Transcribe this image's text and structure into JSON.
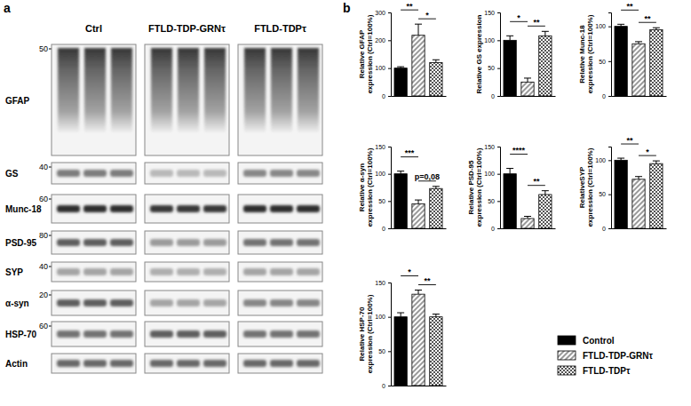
{
  "panel_a": {
    "label": "a",
    "groups": [
      "Ctrl",
      "FTLD-TDP-GRNτ",
      "FTLD-TDPτ"
    ],
    "rows": [
      {
        "name": "GFAP",
        "mw": 50
      },
      {
        "name": "GS",
        "mw": 40
      },
      {
        "name": "Munc-18",
        "mw": 60
      },
      {
        "name": "PSD-95",
        "mw": 80
      },
      {
        "name": "SYP",
        "mw": 40
      },
      {
        "name": "α-syn",
        "mw": 20
      },
      {
        "name": "HSP-70",
        "mw": 60
      },
      {
        "name": "Actin",
        "mw": null
      }
    ]
  },
  "panel_b_label": "b",
  "legend_items": [
    {
      "name": "Control",
      "color": "#000000"
    },
    {
      "name": "FTLD-TDP-GRNτ",
      "color": "#9a9a9a"
    },
    {
      "name": "FTLD-TDPτ",
      "color": "#555555"
    }
  ],
  "chart_data": [
    {
      "type": "bar",
      "y_label": [
        "Relative GFAP",
        "expression (Ctrl=100%)"
      ],
      "categories": [
        null,
        null,
        null
      ],
      "values": [
        100,
        218,
        120
      ],
      "errors": [
        5,
        40,
        10
      ],
      "colors": [
        "#000000",
        "#9a9a9a",
        "#555555"
      ],
      "ylim": [
        0,
        300
      ],
      "yticks": [
        0,
        100,
        200,
        300
      ],
      "comparisons": [
        {
          "from": 0,
          "to": 1,
          "label": "**"
        },
        {
          "from": 1,
          "to": 2,
          "label": "*"
        }
      ]
    },
    {
      "type": "bar",
      "y_label": [
        "Relative GS expression"
      ],
      "categories": [
        null,
        null,
        null
      ],
      "values": [
        100,
        25,
        108
      ],
      "errors": [
        8,
        7,
        8
      ],
      "colors": [
        "#000000",
        "#9a9a9a",
        "#555555"
      ],
      "ylim": [
        0,
        150
      ],
      "yticks": [
        0,
        50,
        100,
        150
      ],
      "comparisons": [
        {
          "from": 0,
          "to": 1,
          "label": "*"
        },
        {
          "from": 1,
          "to": 2,
          "label": "**"
        }
      ]
    },
    {
      "type": "bar",
      "y_label": [
        "Relative Munc-18",
        "expression (Ctrl=100%)"
      ],
      "categories": [
        null,
        null,
        null
      ],
      "values": [
        100,
        75,
        95
      ],
      "errors": [
        3,
        3,
        3
      ],
      "colors": [
        "#000000",
        "#9a9a9a",
        "#555555"
      ],
      "ylim": [
        0,
        120
      ],
      "yticks": [
        0,
        50,
        100
      ],
      "comparisons": [
        {
          "from": 0,
          "to": 1,
          "label": "**"
        },
        {
          "from": 1,
          "to": 2,
          "label": "**"
        }
      ]
    },
    {
      "type": "bar",
      "y_label": [
        "Relative α-syn",
        "expression (Ctrl=100%)"
      ],
      "categories": [
        null,
        null,
        null
      ],
      "values": [
        100,
        45,
        73
      ],
      "errors": [
        5,
        7,
        4
      ],
      "colors": [
        "#000000",
        "#9a9a9a",
        "#555555"
      ],
      "ylim": [
        0,
        150
      ],
      "yticks": [
        0,
        50,
        100,
        150
      ],
      "comparisons": [
        {
          "from": 0,
          "to": 1,
          "label": "***"
        },
        {
          "from": 1,
          "to": 2,
          "label": "p=0,08"
        }
      ]
    },
    {
      "type": "bar",
      "y_label": [
        "Relative PSD-95",
        "expression (Ctrl=100%)"
      ],
      "categories": [
        null,
        null,
        null
      ],
      "values": [
        100,
        18,
        62
      ],
      "errors": [
        10,
        4,
        7
      ],
      "colors": [
        "#000000",
        "#9a9a9a",
        "#555555"
      ],
      "ylim": [
        0,
        150
      ],
      "yticks": [
        0,
        50,
        100,
        150
      ],
      "comparisons": [
        {
          "from": 0,
          "to": 1,
          "label": "****"
        },
        {
          "from": 1,
          "to": 2,
          "label": "**"
        }
      ]
    },
    {
      "type": "bar",
      "y_label": [
        "RelativeSYP",
        "expression (Ctrl=100%)"
      ],
      "categories": [
        null,
        null,
        null
      ],
      "values": [
        100,
        72,
        95
      ],
      "errors": [
        3,
        4,
        4
      ],
      "colors": [
        "#000000",
        "#9a9a9a",
        "#555555"
      ],
      "ylim": [
        0,
        120
      ],
      "yticks": [
        0,
        50,
        100
      ],
      "comparisons": [
        {
          "from": 0,
          "to": 1,
          "label": "**"
        },
        {
          "from": 1,
          "to": 2,
          "label": "*"
        }
      ]
    },
    {
      "type": "bar",
      "y_label": [
        "Relative HSP-70",
        "expression (Ctrl=100%)"
      ],
      "categories": [
        null,
        null,
        null
      ],
      "values": [
        100,
        133,
        100
      ],
      "errors": [
        6,
        6,
        4
      ],
      "colors": [
        "#000000",
        "#9a9a9a",
        "#555555"
      ],
      "ylim": [
        0,
        150
      ],
      "yticks": [
        0,
        50,
        100,
        150
      ],
      "comparisons": [
        {
          "from": 0,
          "to": 1,
          "label": "*"
        },
        {
          "from": 1,
          "to": 2,
          "label": "**"
        }
      ]
    }
  ]
}
